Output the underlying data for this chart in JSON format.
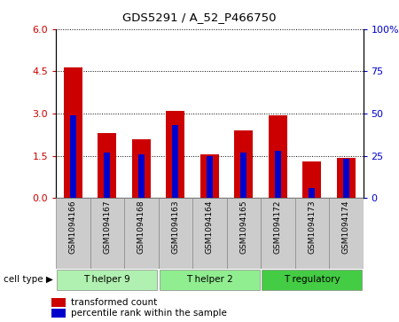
{
  "title": "GDS5291 / A_52_P466750",
  "samples": [
    "GSM1094166",
    "GSM1094167",
    "GSM1094168",
    "GSM1094163",
    "GSM1094164",
    "GSM1094165",
    "GSM1094172",
    "GSM1094173",
    "GSM1094174"
  ],
  "transformed_count": [
    4.65,
    2.3,
    2.1,
    3.1,
    1.55,
    2.4,
    2.95,
    1.3,
    1.42
  ],
  "percentile_rank": [
    49,
    27,
    26,
    43,
    25,
    27,
    28,
    6,
    23
  ],
  "cell_type_groups": [
    {
      "label": "T helper 9",
      "start": 0,
      "end": 3,
      "color": "#b0f0b0"
    },
    {
      "label": "T helper 2",
      "start": 3,
      "end": 6,
      "color": "#90ee90"
    },
    {
      "label": "T regulatory",
      "start": 6,
      "end": 9,
      "color": "#44cc44"
    }
  ],
  "ylim_left": [
    0,
    6
  ],
  "ylim_right": [
    0,
    100
  ],
  "yticks_left": [
    0,
    1.5,
    3.0,
    4.5,
    6.0
  ],
  "yticks_right": [
    0,
    25,
    50,
    75,
    100
  ],
  "bar_color_red": "#cc0000",
  "bar_color_blue": "#0000cc",
  "bar_width": 0.55,
  "blue_bar_width": 0.18,
  "background_color": "#ffffff",
  "plot_bg_color": "#ffffff",
  "grid_color": "#000000",
  "cell_type_label": "cell type",
  "tick_bg_color": "#cccccc",
  "legend_items": [
    "transformed count",
    "percentile rank within the sample"
  ]
}
